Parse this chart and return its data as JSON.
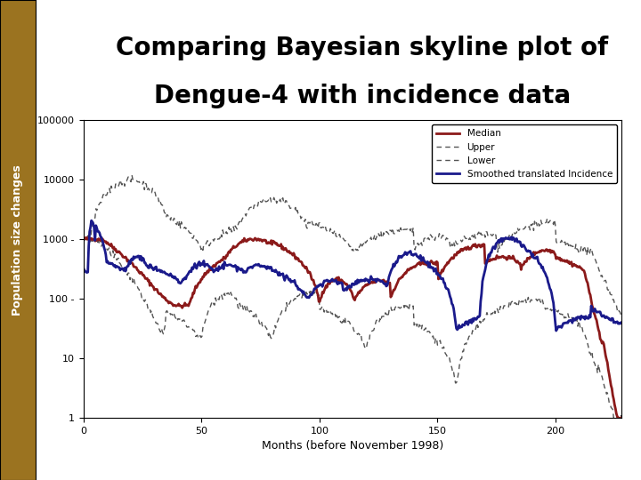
{
  "title_line1": "Comparing Bayesian skyline plot of",
  "title_line2": "Dengue-4 with incidence data",
  "xlabel": "Months (before November 1998)",
  "ylabel": "Population size changes",
  "title_fontsize": 20,
  "axis_label_fontsize": 9,
  "tick_fontsize": 8,
  "legend_labels": [
    "Median",
    "Upper",
    "Lower",
    "Smoothed translated Incidence"
  ],
  "sidebar_color": "#9B7320",
  "xlim": [
    0,
    228
  ],
  "ylim_log": [
    1,
    100000
  ],
  "xticks": [
    0,
    50,
    100,
    150,
    200
  ],
  "ytick_vals": [
    1,
    10,
    100,
    1000,
    10000,
    100000
  ],
  "ytick_labels": [
    "1",
    "10",
    "100 -",
    "1000 -",
    "10000",
    "100000"
  ]
}
